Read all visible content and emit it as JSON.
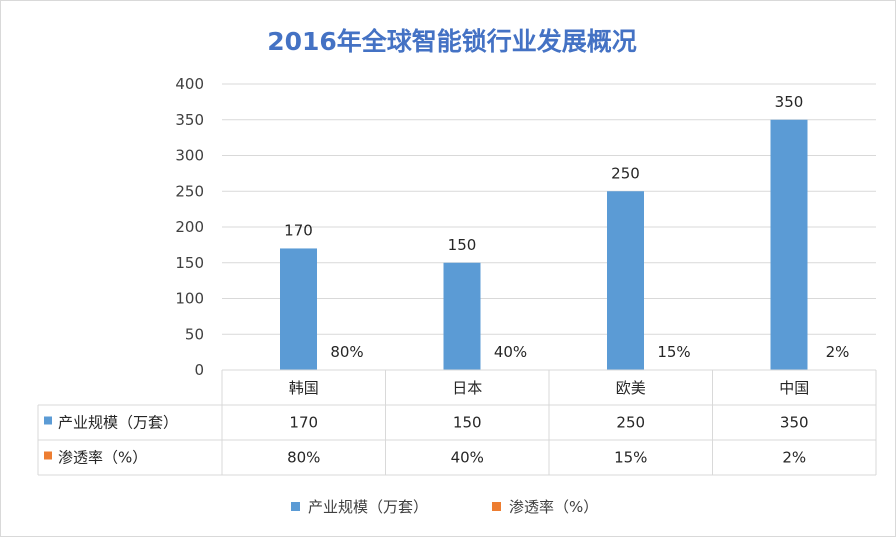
{
  "chart_data": {
    "type": "bar",
    "title": "2016年全球智能锁行业发展概况",
    "categories": [
      "韩国",
      "日本",
      "欧美",
      "中国"
    ],
    "series": [
      {
        "name": "产业规模（万套）",
        "values": [
          170,
          150,
          250,
          350
        ],
        "color": "#5b9bd5"
      },
      {
        "name": "渗透率（%）",
        "values": [
          0.8,
          0.4,
          0.15,
          0.02
        ],
        "display": [
          "80%",
          "40%",
          "15%",
          "2%"
        ],
        "color": "#ed7d31"
      }
    ],
    "ylim": [
      0,
      400
    ],
    "yticks": [
      0,
      50,
      100,
      150,
      200,
      250,
      300,
      350,
      400
    ],
    "grid": true,
    "data_table": true,
    "legend_position": "bottom"
  },
  "table": {
    "rows": [
      {
        "label": "产业规模（万套）",
        "cells": [
          "170",
          "150",
          "250",
          "350"
        ]
      },
      {
        "label": "渗透率（%）",
        "cells": [
          "80%",
          "40%",
          "15%",
          "2%"
        ]
      }
    ]
  }
}
